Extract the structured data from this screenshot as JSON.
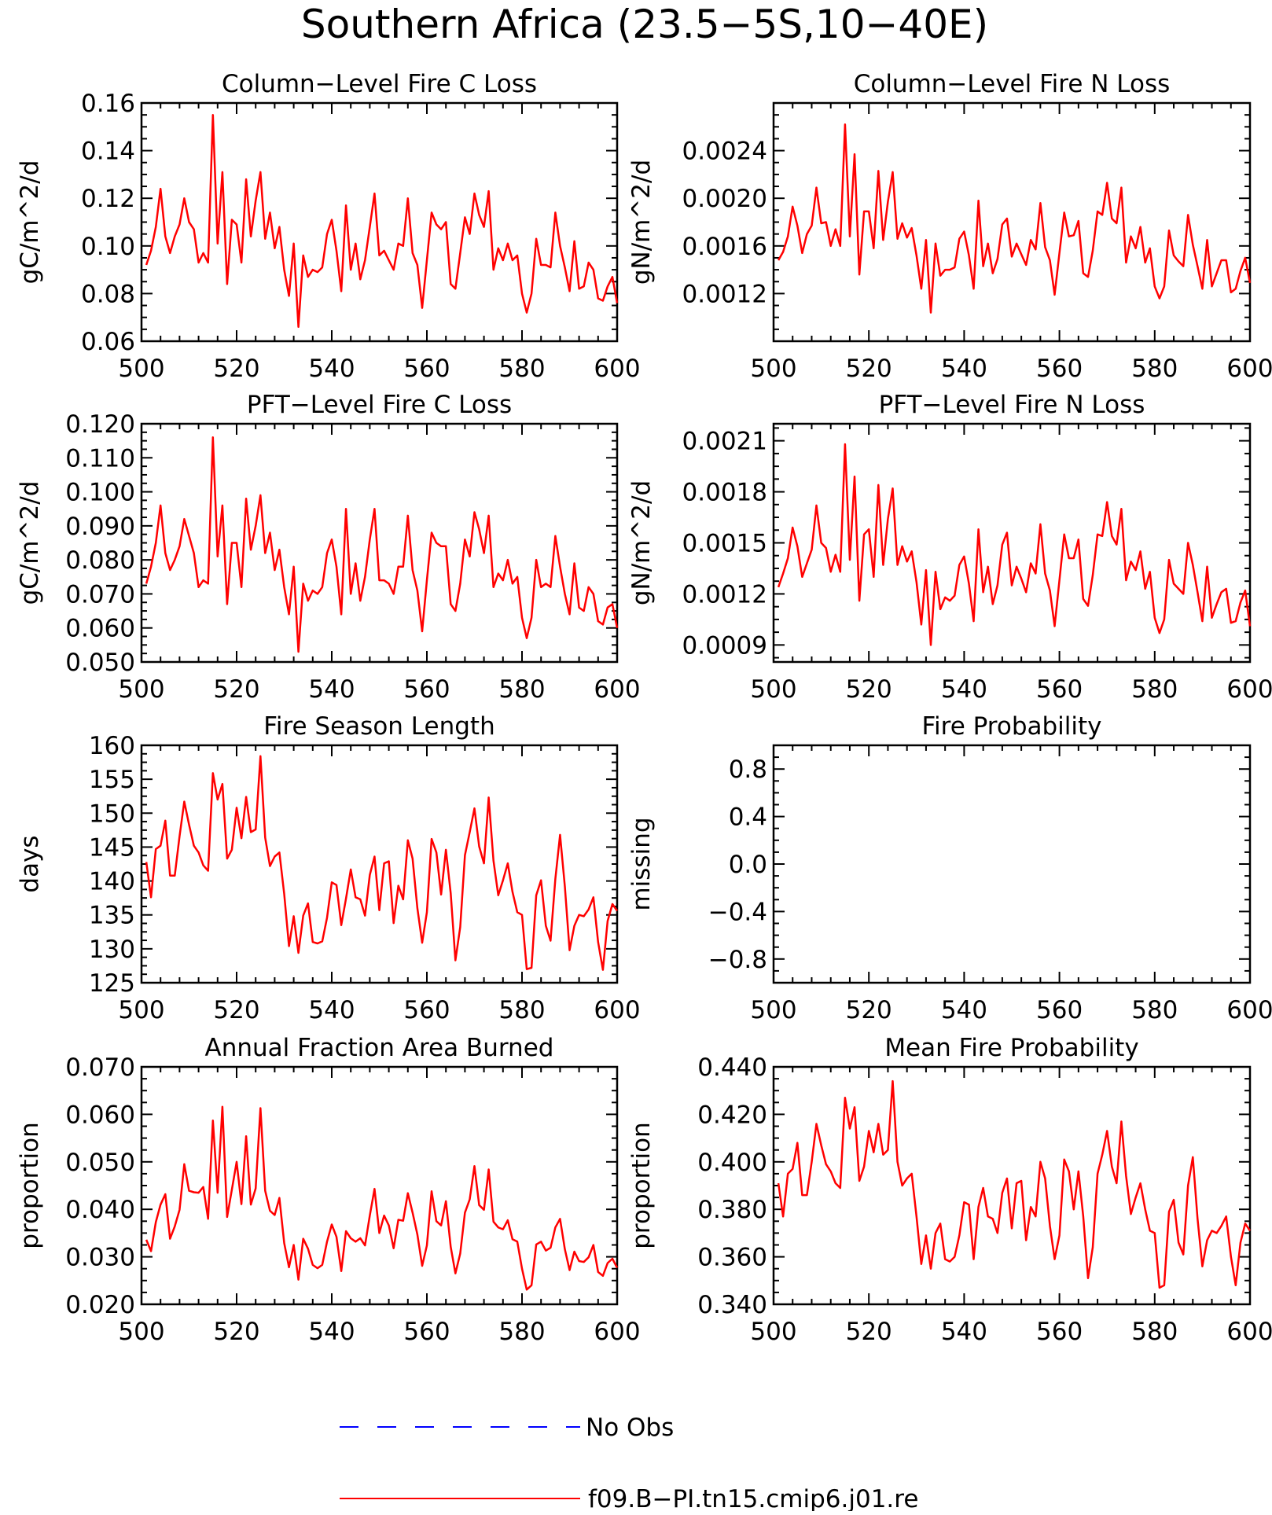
{
  "figure": {
    "title": "Southern Africa (23.5−5S,10−40E)"
  },
  "colors": {
    "model": "#ff0000",
    "obs": "#0000ff",
    "axis": "#000000"
  },
  "legend": {
    "items": [
      {
        "label": "No Obs",
        "style": "dashed",
        "color": "#0000ff"
      },
      {
        "label": "f09.B−PI.tn15.cmip6.j01.re",
        "style": "solid",
        "color": "#ff0000"
      }
    ]
  },
  "chart_data": [
    {
      "type": "line",
      "title": "Column−Level Fire C Loss",
      "ylabel": "gC/m^2/d",
      "xlim": [
        500,
        600
      ],
      "xticks": [
        "500",
        "520",
        "540",
        "560",
        "580",
        "600"
      ],
      "ylim": [
        0.06,
        0.16
      ],
      "yticks": [
        "0.06",
        "0.08",
        "0.10",
        "0.12",
        "0.14",
        "0.16"
      ],
      "series": [
        {
          "values": [
            0.092,
            0.098,
            0.108,
            0.124,
            0.104,
            0.097,
            0.104,
            0.109,
            0.12,
            0.11,
            0.107,
            0.093,
            0.097,
            0.093,
            0.155,
            0.101,
            0.131,
            0.084,
            0.111,
            0.109,
            0.093,
            0.128,
            0.104,
            0.119,
            0.131,
            0.103,
            0.114,
            0.099,
            0.108,
            0.09,
            0.079,
            0.101,
            0.066,
            0.096,
            0.087,
            0.09,
            0.089,
            0.091,
            0.105,
            0.111,
            0.098,
            0.081,
            0.117,
            0.09,
            0.101,
            0.086,
            0.094,
            0.108,
            0.122,
            0.096,
            0.098,
            0.094,
            0.09,
            0.101,
            0.1,
            0.12,
            0.097,
            0.092,
            0.074,
            0.094,
            0.114,
            0.109,
            0.107,
            0.11,
            0.084,
            0.082,
            0.097,
            0.112,
            0.105,
            0.122,
            0.113,
            0.108,
            0.123,
            0.09,
            0.099,
            0.094,
            0.101,
            0.094,
            0.096,
            0.08,
            0.072,
            0.08,
            0.103,
            0.092,
            0.092,
            0.091,
            0.114,
            0.1,
            0.091,
            0.081,
            0.102,
            0.082,
            0.083,
            0.093,
            0.09,
            0.078,
            0.077,
            0.083,
            0.087,
            0.076
          ]
        }
      ]
    },
    {
      "type": "line",
      "title": "Column−Level Fire N Loss",
      "ylabel": "gN/m^2/d",
      "xlim": [
        500,
        600
      ],
      "xticks": [
        "500",
        "520",
        "540",
        "560",
        "580",
        "600"
      ],
      "ylim": [
        0.0008,
        0.0028
      ],
      "yticks": [
        "0.0012",
        "0.0016",
        "0.0020",
        "0.0024"
      ],
      "series": [
        {
          "values": [
            0.00148,
            0.00155,
            0.00168,
            0.00193,
            0.00177,
            0.00154,
            0.0017,
            0.00177,
            0.00209,
            0.00179,
            0.0018,
            0.0016,
            0.00174,
            0.0016,
            0.00262,
            0.00168,
            0.00237,
            0.00136,
            0.00189,
            0.00189,
            0.00158,
            0.00223,
            0.00165,
            0.00197,
            0.00222,
            0.00166,
            0.00179,
            0.00167,
            0.00175,
            0.00152,
            0.00124,
            0.00165,
            0.00104,
            0.00162,
            0.00135,
            0.0014,
            0.0014,
            0.00142,
            0.00166,
            0.00172,
            0.00152,
            0.00124,
            0.00198,
            0.00143,
            0.00162,
            0.00137,
            0.00149,
            0.00178,
            0.00183,
            0.00151,
            0.00162,
            0.00153,
            0.00144,
            0.00165,
            0.00157,
            0.00196,
            0.00159,
            0.00148,
            0.00119,
            0.00154,
            0.00188,
            0.00168,
            0.00169,
            0.00181,
            0.00137,
            0.00134,
            0.00156,
            0.00189,
            0.00186,
            0.00213,
            0.00183,
            0.00179,
            0.00209,
            0.00146,
            0.00168,
            0.00158,
            0.00176,
            0.00146,
            0.00158,
            0.00126,
            0.00116,
            0.00126,
            0.00173,
            0.00152,
            0.00147,
            0.00143,
            0.00186,
            0.00161,
            0.00143,
            0.00124,
            0.00165,
            0.00126,
            0.00137,
            0.00148,
            0.00148,
            0.00121,
            0.00124,
            0.00139,
            0.0015,
            0.00129
          ]
        }
      ]
    },
    {
      "type": "line",
      "title": "PFT−Level Fire C Loss",
      "ylabel": "gC/m^2/d",
      "xlim": [
        500,
        600
      ],
      "xticks": [
        "500",
        "520",
        "540",
        "560",
        "580",
        "600"
      ],
      "ylim": [
        0.05,
        0.12
      ],
      "yticks": [
        "0.050",
        "0.060",
        "0.070",
        "0.080",
        "0.090",
        "0.100",
        "0.110",
        "0.120"
      ],
      "series": [
        {
          "values": [
            0.073,
            0.078,
            0.085,
            0.096,
            0.082,
            0.077,
            0.08,
            0.084,
            0.092,
            0.087,
            0.082,
            0.072,
            0.074,
            0.073,
            0.116,
            0.081,
            0.096,
            0.067,
            0.085,
            0.085,
            0.072,
            0.098,
            0.083,
            0.09,
            0.099,
            0.082,
            0.088,
            0.077,
            0.083,
            0.072,
            0.064,
            0.078,
            0.053,
            0.073,
            0.068,
            0.071,
            0.07,
            0.072,
            0.082,
            0.086,
            0.078,
            0.064,
            0.095,
            0.07,
            0.079,
            0.068,
            0.075,
            0.086,
            0.095,
            0.074,
            0.074,
            0.073,
            0.07,
            0.078,
            0.078,
            0.093,
            0.077,
            0.071,
            0.059,
            0.074,
            0.088,
            0.085,
            0.084,
            0.084,
            0.067,
            0.065,
            0.073,
            0.086,
            0.081,
            0.094,
            0.089,
            0.082,
            0.093,
            0.072,
            0.076,
            0.074,
            0.08,
            0.073,
            0.075,
            0.063,
            0.057,
            0.063,
            0.08,
            0.072,
            0.073,
            0.072,
            0.087,
            0.078,
            0.07,
            0.064,
            0.079,
            0.066,
            0.065,
            0.072,
            0.07,
            0.062,
            0.061,
            0.066,
            0.067,
            0.06
          ]
        }
      ]
    },
    {
      "type": "line",
      "title": "PFT−Level Fire N Loss",
      "ylabel": "gN/m^2/d",
      "xlim": [
        500,
        600
      ],
      "xticks": [
        "500",
        "520",
        "540",
        "560",
        "580",
        "600"
      ],
      "ylim": [
        0.0008,
        0.0022
      ],
      "yticks": [
        "0.0009",
        "0.0012",
        "0.0015",
        "0.0018",
        "0.0021"
      ],
      "series": [
        {
          "values": [
            0.00124,
            0.00132,
            0.00141,
            0.00159,
            0.00148,
            0.0013,
            0.00138,
            0.00146,
            0.00172,
            0.0015,
            0.00147,
            0.00133,
            0.00143,
            0.00133,
            0.00208,
            0.0014,
            0.00189,
            0.00116,
            0.00155,
            0.00158,
            0.0013,
            0.00184,
            0.00137,
            0.00164,
            0.00182,
            0.00137,
            0.00148,
            0.00139,
            0.00145,
            0.00127,
            0.00102,
            0.00134,
            0.0009,
            0.00133,
            0.00111,
            0.00118,
            0.00116,
            0.00119,
            0.00137,
            0.00142,
            0.00126,
            0.00104,
            0.00158,
            0.00121,
            0.00136,
            0.00114,
            0.00125,
            0.00149,
            0.00156,
            0.00125,
            0.00136,
            0.00129,
            0.00121,
            0.00138,
            0.00132,
            0.00161,
            0.00132,
            0.00122,
            0.00101,
            0.00128,
            0.00155,
            0.00141,
            0.00141,
            0.00152,
            0.00117,
            0.00113,
            0.00131,
            0.00155,
            0.00154,
            0.00174,
            0.00154,
            0.00149,
            0.0017,
            0.00128,
            0.00139,
            0.00134,
            0.00145,
            0.00123,
            0.00133,
            0.00106,
            0.00097,
            0.00105,
            0.0014,
            0.00126,
            0.00123,
            0.0012,
            0.0015,
            0.00137,
            0.00121,
            0.00104,
            0.00136,
            0.00106,
            0.00114,
            0.00121,
            0.00123,
            0.00103,
            0.00104,
            0.00115,
            0.00122,
            0.00101
          ]
        }
      ]
    },
    {
      "type": "line",
      "title": "Fire Season Length",
      "ylabel": "days",
      "xlim": [
        500,
        600
      ],
      "xticks": [
        "500",
        "520",
        "540",
        "560",
        "580",
        "600"
      ],
      "ylim": [
        125,
        160
      ],
      "yticks": [
        "125",
        "130",
        "135",
        "140",
        "145",
        "150",
        "155",
        "160"
      ],
      "series": [
        {
          "values": [
            142.8,
            137.6,
            144.7,
            145.2,
            148.9,
            140.8,
            140.8,
            146.6,
            151.7,
            148.3,
            145.2,
            144.2,
            142.3,
            141.5,
            155.9,
            152,
            154.3,
            143.3,
            144.6,
            150.8,
            146.3,
            152.4,
            147.2,
            147.6,
            158.4,
            146.4,
            142.2,
            143.6,
            144.2,
            138.1,
            130.4,
            134.8,
            129.4,
            134.9,
            136.7,
            131,
            130.8,
            131.1,
            134.6,
            139.8,
            139.4,
            133.5,
            137.4,
            141.7,
            137.6,
            137.3,
            134.9,
            140.9,
            143.6,
            135.7,
            142.6,
            142.9,
            133.8,
            139.3,
            137.3,
            146,
            143.3,
            136,
            130.9,
            135.4,
            146.2,
            144.2,
            138,
            144.6,
            138.2,
            128.3,
            133.2,
            143.8,
            147.2,
            150.7,
            145.1,
            142.6,
            152.3,
            143,
            137.9,
            140.1,
            142.6,
            138.4,
            135.4,
            135,
            127,
            127.2,
            137.9,
            140.1,
            133.4,
            131.2,
            140.3,
            146.8,
            139.2,
            129.8,
            133.4,
            135,
            134.8,
            135.8,
            137.6,
            131,
            126.9,
            134.1,
            136.6,
            135.6
          ]
        }
      ]
    },
    {
      "type": "line",
      "title": "Fire Probability",
      "ylabel": "missing",
      "xlim": [
        500,
        600
      ],
      "xticks": [
        "500",
        "520",
        "540",
        "560",
        "580",
        "600"
      ],
      "ylim": [
        -1,
        1
      ],
      "yticks": [
        "−0.8",
        "−0.4",
        "0.0",
        "0.4",
        "0.8"
      ],
      "series": []
    },
    {
      "type": "line",
      "title": "Annual Fraction Area Burned",
      "ylabel": "proportion",
      "xlim": [
        500,
        600
      ],
      "xticks": [
        "500",
        "520",
        "540",
        "560",
        "580",
        "600"
      ],
      "ylim": [
        0.02,
        0.07
      ],
      "yticks": [
        "0.020",
        "0.030",
        "0.040",
        "0.050",
        "0.060",
        "0.070"
      ],
      "series": [
        {
          "values": [
            0.0336,
            0.0312,
            0.0373,
            0.041,
            0.0432,
            0.0338,
            0.0364,
            0.0399,
            0.0495,
            0.0439,
            0.0436,
            0.0435,
            0.0447,
            0.038,
            0.0587,
            0.0435,
            0.0616,
            0.0384,
            0.0441,
            0.05,
            0.0411,
            0.0554,
            0.041,
            0.0444,
            0.0613,
            0.0439,
            0.0397,
            0.0388,
            0.0424,
            0.0329,
            0.0278,
            0.0325,
            0.0252,
            0.0338,
            0.0317,
            0.0283,
            0.0276,
            0.0283,
            0.0332,
            0.0368,
            0.0342,
            0.027,
            0.0354,
            0.0339,
            0.0332,
            0.0339,
            0.0324,
            0.0387,
            0.0443,
            0.035,
            0.0387,
            0.0366,
            0.0318,
            0.0378,
            0.0376,
            0.0434,
            0.0393,
            0.0347,
            0.0281,
            0.0324,
            0.0438,
            0.0375,
            0.0366,
            0.0417,
            0.0321,
            0.0265,
            0.0307,
            0.0393,
            0.0421,
            0.0491,
            0.0409,
            0.0399,
            0.0484,
            0.0374,
            0.0362,
            0.0358,
            0.0377,
            0.0337,
            0.0332,
            0.0275,
            0.0231,
            0.024,
            0.0326,
            0.0332,
            0.0313,
            0.0319,
            0.0362,
            0.038,
            0.0316,
            0.0272,
            0.0311,
            0.0291,
            0.0289,
            0.0299,
            0.0325,
            0.0268,
            0.026,
            0.0287,
            0.0296,
            0.0277
          ]
        }
      ]
    },
    {
      "type": "line",
      "title": "Mean Fire Probability",
      "ylabel": "proportion",
      "xlim": [
        500,
        600
      ],
      "xticks": [
        "500",
        "520",
        "540",
        "560",
        "580",
        "600"
      ],
      "ylim": [
        0.34,
        0.44
      ],
      "yticks": [
        "0.340",
        "0.360",
        "0.380",
        "0.400",
        "0.420",
        "0.440"
      ],
      "series": [
        {
          "values": [
            0.391,
            0.377,
            0.395,
            0.397,
            0.408,
            0.386,
            0.386,
            0.4,
            0.416,
            0.407,
            0.399,
            0.396,
            0.391,
            0.389,
            0.427,
            0.414,
            0.423,
            0.392,
            0.398,
            0.413,
            0.404,
            0.416,
            0.403,
            0.405,
            0.434,
            0.4,
            0.39,
            0.393,
            0.395,
            0.377,
            0.357,
            0.369,
            0.355,
            0.37,
            0.374,
            0.359,
            0.358,
            0.36,
            0.369,
            0.383,
            0.382,
            0.359,
            0.381,
            0.389,
            0.377,
            0.376,
            0.37,
            0.387,
            0.393,
            0.372,
            0.391,
            0.392,
            0.367,
            0.381,
            0.377,
            0.4,
            0.393,
            0.373,
            0.359,
            0.369,
            0.401,
            0.396,
            0.38,
            0.396,
            0.377,
            0.351,
            0.364,
            0.395,
            0.403,
            0.413,
            0.398,
            0.391,
            0.417,
            0.394,
            0.378,
            0.385,
            0.391,
            0.38,
            0.371,
            0.37,
            0.347,
            0.348,
            0.379,
            0.384,
            0.366,
            0.361,
            0.39,
            0.402,
            0.376,
            0.356,
            0.367,
            0.371,
            0.37,
            0.373,
            0.377,
            0.36,
            0.348,
            0.366,
            0.374,
            0.371
          ]
        }
      ]
    }
  ]
}
